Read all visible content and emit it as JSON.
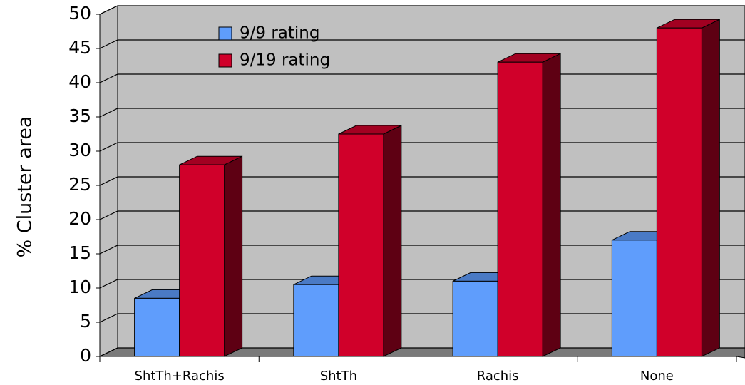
{
  "chart_data": {
    "type": "bar3d",
    "y_label": "% Cluster area",
    "categories": [
      "ShtTh+Rachis",
      "ShtTh",
      "Rachis",
      "None"
    ],
    "series": [
      {
        "name": "9/9 rating",
        "color": "#5f9dfc",
        "values": [
          8.5,
          10.5,
          11,
          17
        ]
      },
      {
        "name": "9/19 rating",
        "color": "#d0002a",
        "values": [
          28,
          32.5,
          43,
          48
        ]
      }
    ],
    "ylim": [
      0,
      50
    ],
    "yticks": [
      0,
      5,
      10,
      15,
      20,
      25,
      30,
      35,
      40,
      45,
      50
    ],
    "grid": true
  }
}
